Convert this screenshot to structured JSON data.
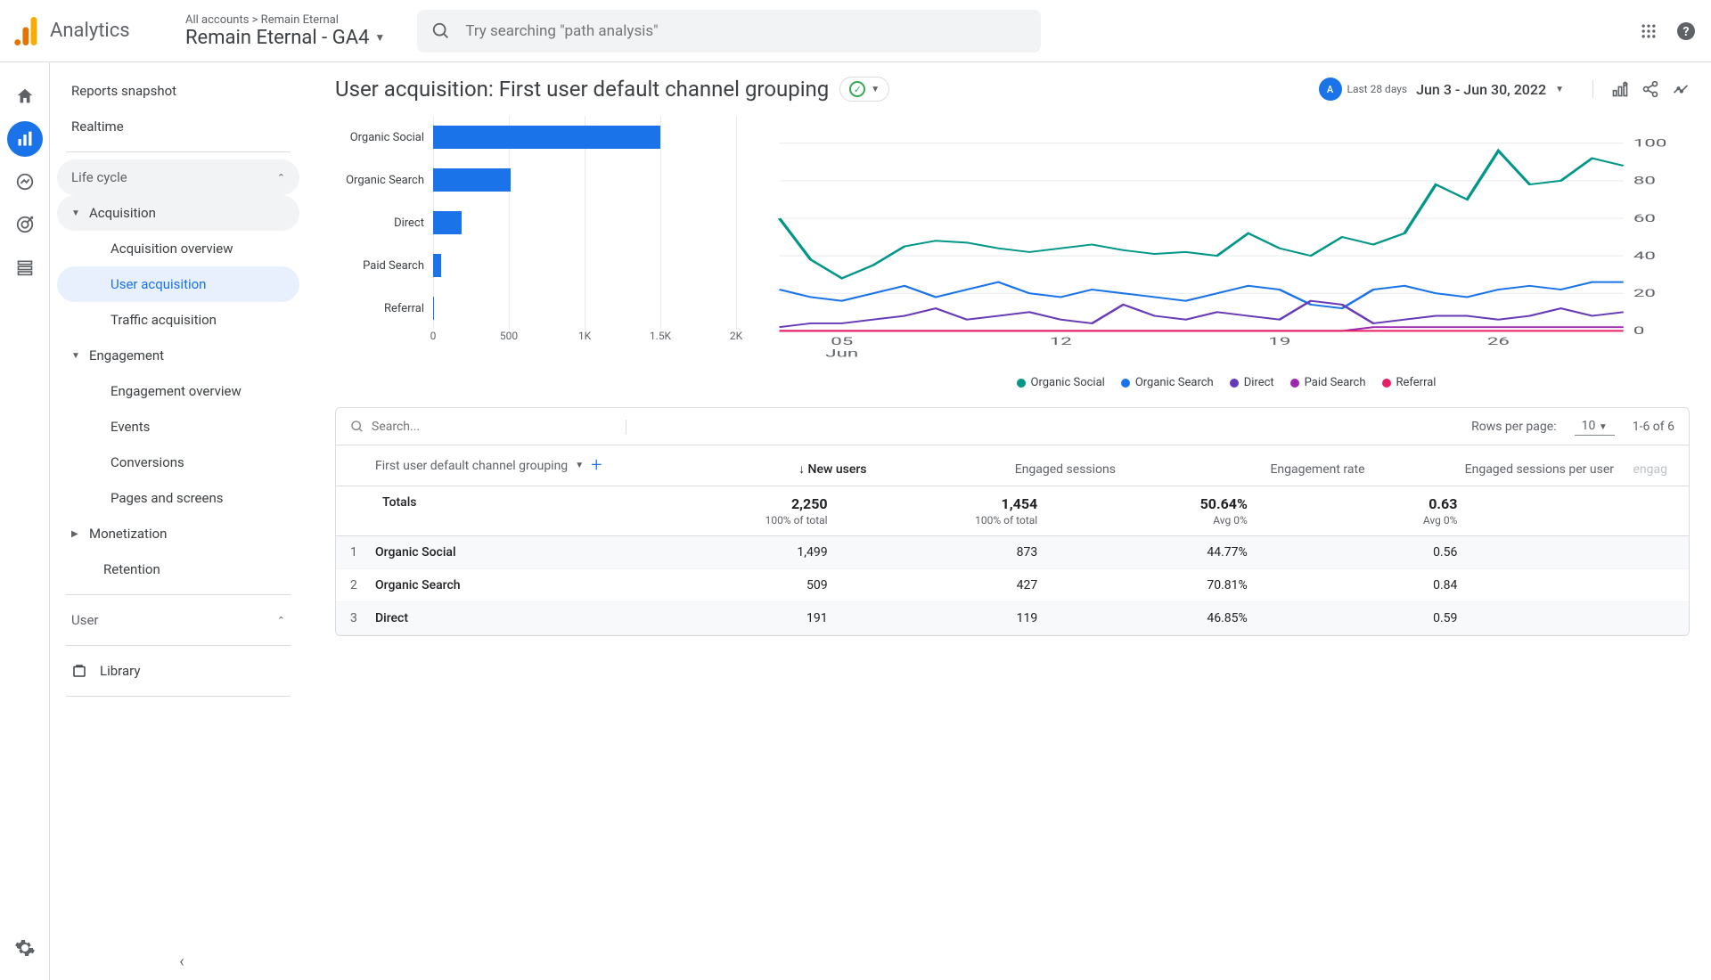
{
  "header": {
    "product": "Analytics",
    "breadcrumb": "All accounts > Remain Eternal",
    "property": "Remain Eternal - GA4",
    "search_placeholder": "Try searching \"path analysis\""
  },
  "sidebar": {
    "reports_snapshot": "Reports snapshot",
    "realtime": "Realtime",
    "life_cycle": "Life cycle",
    "acquisition": "Acquisition",
    "acquisition_overview": "Acquisition overview",
    "user_acquisition": "User acquisition",
    "traffic_acquisition": "Traffic acquisition",
    "engagement": "Engagement",
    "engagement_overview": "Engagement overview",
    "events": "Events",
    "conversions": "Conversions",
    "pages_screens": "Pages and screens",
    "monetization": "Monetization",
    "retention": "Retention",
    "user": "User",
    "library": "Library"
  },
  "page": {
    "title": "User acquisition: First user default channel grouping",
    "date_badge": "Last 28 days",
    "date_range": "Jun 3 - Jun 30, 2022"
  },
  "bar_chart": {
    "type": "bar",
    "xmax": 2000,
    "ticks": [
      0,
      500,
      1000,
      1500,
      2000
    ],
    "tick_labels": [
      "0",
      "500",
      "1K",
      "1.5K",
      "2K"
    ],
    "bar_color": "#1a73e8",
    "grid_color": "#e8eaed",
    "data": [
      {
        "label": "Organic Social",
        "value": 1499
      },
      {
        "label": "Organic Search",
        "value": 509
      },
      {
        "label": "Direct",
        "value": 191
      },
      {
        "label": "Paid Search",
        "value": 50
      },
      {
        "label": "Referral",
        "value": 2
      }
    ]
  },
  "line_chart": {
    "type": "line",
    "ylim": [
      0,
      110
    ],
    "yticks": [
      0,
      20,
      40,
      60,
      80,
      100
    ],
    "xticks": [
      5,
      12,
      19,
      26
    ],
    "xtick_labels": [
      "05",
      "12",
      "19",
      "26"
    ],
    "x_month": "Jun",
    "series": [
      {
        "name": "Organic Social",
        "color": "#009688",
        "points": [
          60,
          38,
          28,
          35,
          45,
          48,
          47,
          44,
          42,
          44,
          46,
          43,
          41,
          42,
          40,
          52,
          44,
          40,
          50,
          46,
          52,
          78,
          70,
          96,
          78,
          80,
          92,
          88
        ]
      },
      {
        "name": "Organic Search",
        "color": "#1a73e8",
        "points": [
          22,
          18,
          16,
          20,
          24,
          18,
          22,
          26,
          20,
          18,
          22,
          20,
          18,
          16,
          20,
          24,
          22,
          14,
          12,
          22,
          24,
          20,
          18,
          22,
          24,
          22,
          26,
          26
        ]
      },
      {
        "name": "Direct",
        "color": "#673ab7",
        "points": [
          2,
          4,
          4,
          6,
          8,
          12,
          6,
          8,
          10,
          6,
          4,
          14,
          8,
          6,
          10,
          8,
          6,
          16,
          14,
          4,
          6,
          8,
          8,
          6,
          8,
          12,
          8,
          10
        ]
      },
      {
        "name": "Paid Search",
        "color": "#9c27b0",
        "points": [
          0,
          0,
          0,
          0,
          0,
          0,
          0,
          0,
          0,
          0,
          0,
          0,
          0,
          0,
          0,
          0,
          0,
          0,
          0,
          2,
          2,
          2,
          2,
          2,
          2,
          2,
          2,
          2
        ]
      },
      {
        "name": "Referral",
        "color": "#e91e63",
        "points": [
          0,
          0,
          0,
          0,
          0,
          0,
          0,
          0,
          0,
          0,
          0,
          0,
          0,
          0,
          0,
          0,
          0,
          0,
          0,
          0,
          0,
          0,
          0,
          0,
          0,
          0,
          0,
          0
        ]
      }
    ]
  },
  "table": {
    "search_placeholder": "Search...",
    "rows_per_page_label": "Rows per page:",
    "rows_per_page": "10",
    "page_info": "1-6 of 6",
    "dimension_label": "First user default channel grouping",
    "totals_label": "Totals",
    "columns": [
      {
        "label": "New users",
        "sorted": true
      },
      {
        "label": "Engaged sessions"
      },
      {
        "label": "Engagement rate"
      },
      {
        "label": "Engaged sessions per user"
      },
      {
        "label": "engag",
        "truncated": true
      }
    ],
    "totals": {
      "new_users": {
        "value": "2,250",
        "sub": "100% of total"
      },
      "engaged_sessions": {
        "value": "1,454",
        "sub": "100% of total"
      },
      "engagement_rate": {
        "value": "50.64%",
        "sub": "Avg 0%"
      },
      "eng_per_user": {
        "value": "0.63",
        "sub": "Avg 0%"
      }
    },
    "rows": [
      {
        "idx": "1",
        "dim": "Organic Social",
        "new_users": "1,499",
        "engaged": "873",
        "rate": "44.77%",
        "per_user": "0.56"
      },
      {
        "idx": "2",
        "dim": "Organic Search",
        "new_users": "509",
        "engaged": "427",
        "rate": "70.81%",
        "per_user": "0.84"
      },
      {
        "idx": "3",
        "dim": "Direct",
        "new_users": "191",
        "engaged": "119",
        "rate": "46.85%",
        "per_user": "0.59"
      }
    ]
  }
}
